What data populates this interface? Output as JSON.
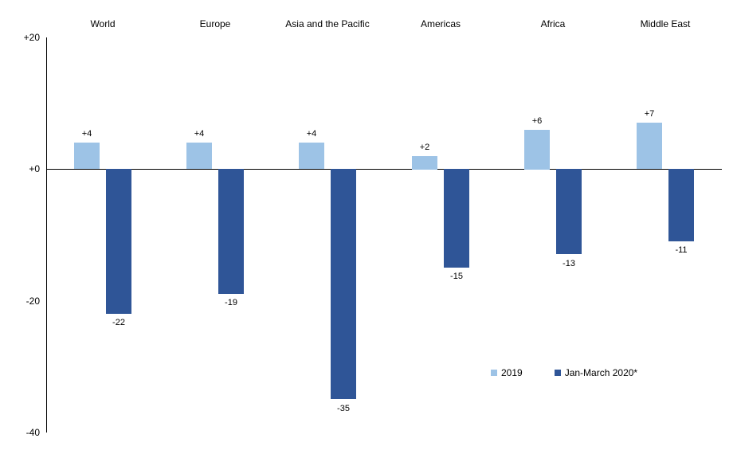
{
  "chart_data": {
    "type": "bar",
    "title": "",
    "xlabel": "",
    "ylabel": "",
    "categories": [
      "World",
      "Europe",
      "Asia and the Pacific",
      "Americas",
      "Africa",
      "Middle East"
    ],
    "series": [
      {
        "name": "2019",
        "color": "#9DC3E6",
        "values": [
          4,
          4,
          4,
          2,
          6,
          7
        ],
        "labels": [
          "+4",
          "+4",
          "+4",
          "+2",
          "+6",
          "+7"
        ]
      },
      {
        "name": "Jan-March 2020*",
        "color": "#2F5597",
        "values": [
          -22,
          -19,
          -35,
          -15,
          -13,
          -11
        ],
        "labels": [
          "-22",
          "-19",
          "-35",
          "-15",
          "-13",
          "-11"
        ]
      }
    ],
    "ylim": [
      -40,
      20
    ],
    "yticks": [
      {
        "label": "+20",
        "value": 20
      },
      {
        "label": "+0",
        "value": 0
      },
      {
        "label": "-20",
        "value": -20
      },
      {
        "label": "-40",
        "value": -40
      }
    ],
    "grid": false,
    "legend_position": "inside-bottom-right"
  }
}
